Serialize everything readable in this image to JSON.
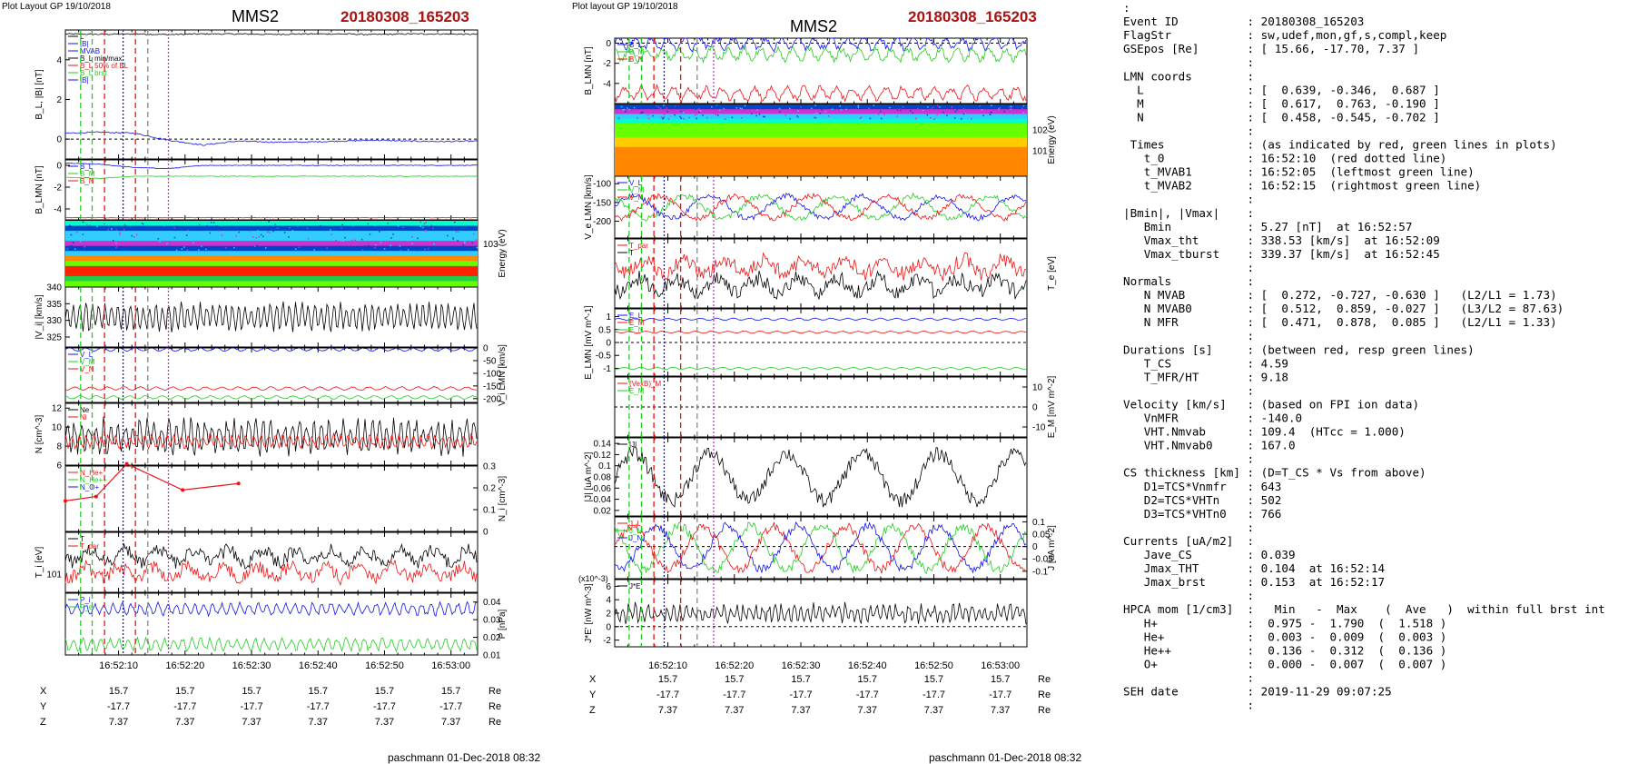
{
  "left": {
    "header": "Plot Layout GP 19/10/2018",
    "spacecraft": "MMS2",
    "event": "20180308_165203",
    "footer": "paschmann 01-Dec-2018 08:32",
    "time_ticks": [
      "16:52:10",
      "16:52:20",
      "16:52:30",
      "16:52:40",
      "16:52:50",
      "16:53:00"
    ],
    "pos_rows": [
      {
        "label": "X",
        "values": [
          "15.7",
          "15.7",
          "15.7",
          "15.7",
          "15.7",
          "15.7"
        ],
        "unit": "Re"
      },
      {
        "label": "Y",
        "values": [
          "-17.7",
          "-17.7",
          "-17.7",
          "-17.7",
          "-17.7",
          "-17.7"
        ],
        "unit": "Re"
      },
      {
        "label": "Z",
        "values": [
          "7.37",
          "7.37",
          "7.37",
          "7.37",
          "7.37",
          "7.37"
        ],
        "unit": "Re"
      }
    ]
  },
  "middle": {
    "header": "Plot layout GP 19/10/2018",
    "spacecraft": "MMS2",
    "event": "20180308_165203",
    "footer": "paschmann 01-Dec-2018 08:32",
    "time_ticks": [
      "16:52:10",
      "16:52:20",
      "16:52:30",
      "16:52:40",
      "16:52:50",
      "16:53:00"
    ],
    "pos_rows": [
      {
        "label": "X",
        "values": [
          "15.7",
          "15.7",
          "15.7",
          "15.7",
          "15.7",
          "15.7"
        ],
        "unit": "Re"
      },
      {
        "label": "Y",
        "values": [
          "-17.7",
          "-17.7",
          "-17.7",
          "-17.7",
          "-17.7",
          "-17.7"
        ],
        "unit": "Re"
      },
      {
        "label": "Z",
        "values": [
          "7.37",
          "7.37",
          "7.37",
          "7.37",
          "7.37",
          "7.37"
        ],
        "unit": "Re"
      }
    ]
  },
  "info_lines": [
    ":",
    "Event ID          : 20180308_165203",
    "FlagStr           : sw,udef,mon,gf,s,compl,keep",
    "GSEpos [Re]       : [ 15.66, -17.70, 7.37 ]",
    "                  :",
    "LMN coords        :",
    "  L               : [  0.639, -0.346,  0.687 ]",
    "  M               : [  0.617,  0.763, -0.190 ]",
    "  N               : [  0.458, -0.545, -0.702 ]",
    "                  :",
    " Times            : (as indicated by red, green lines in plots)",
    "   t_0            : 16:52:10  (red dotted line)",
    "   t_MVAB1        : 16:52:05  (leftmost green line)",
    "   t_MVAB2        : 16:52:15  (rightmost green line)",
    "                  :",
    "|Bmin|, |Vmax|    :",
    "   Bmin           : 5.27 [nT]  at 16:52:57",
    "   Vmax_tht       : 338.53 [km/s]  at 16:52:09",
    "   Vmax_tburst    : 339.37 [km/s]  at 16:52:45",
    "                  :",
    "Normals           :",
    "   N MVAB         : [  0.272, -0.727, -0.630 ]   (L2/L1 = 1.73)",
    "   N MVAB0        : [  0.512,  0.859, -0.027 ]   (L3/L2 = 87.63)",
    "   N MFR          : [  0.471,  0.878,  0.085 ]   (L2/L1 = 1.33)",
    "                  :",
    "Durations [s]     : (between red, resp green lines)",
    "   T_CS           : 4.59",
    "   T_MFR/HT       : 9.18",
    "                  :",
    "Velocity [km/s]   : (based on FPI ion data)",
    "   VnMFR          : -140.0",
    "   VHT.Nmvab      : 109.4  (HTcc = 1.000)",
    "   VHT.Nmvab0     : 167.0",
    "                  :",
    "CS thickness [km] : (D=T_CS * Vs from above)",
    "   D1=TCS*Vnmfr   : 643",
    "   D2=TCS*VHTn    : 502",
    "   D3=TCS*VHTn0   : 766",
    "                  :",
    "Currents [uA/m2]  :",
    "   Jave_CS        : 0.039",
    "   Jmax_THT       : 0.104  at 16:52:14",
    "   Jmax_brst      : 0.153  at 16:52:17",
    "                  :",
    "HPCA mom [1/cm3]  :   Min   -  Max    (  Ave   )  within full brst int",
    "   H+             :  0.975 -  1.790  (  1.518 )",
    "   He+            :  0.003 -  0.009  (  0.003 )",
    "   He++           :  0.136 -  0.312  (  0.136 )",
    "   O+             :  0.000 -  0.007  (  0.007 )",
    "                  :",
    "SEH date          : 2019-11-29 09:07:25",
    "                  :"
  ],
  "colors": {
    "blue": "#1010ee",
    "green": "#22cc22",
    "red": "#ee1111",
    "black": "#000000",
    "magenta": "#cc33cc",
    "title_red": "#aa1111"
  },
  "chart_data": [
    {
      "type": "line",
      "title": "MMS2",
      "panels": [
        {
          "id": "L1",
          "ylabel": "B_L, |B| [nT]",
          "ylim": [
            -1,
            5.5
          ],
          "yticks": [
            0,
            2,
            4
          ],
          "legend": [
            "L",
            "|B|",
            "MVAB",
            "B_L min/max",
            "B_L 50% of BL",
            "B_L brst",
            "|B|"
          ],
          "series": [
            {
              "name": "|B|",
              "color": "black",
              "values": [
                5.3,
                5.28,
                5.3,
                5.27,
                5.3,
                5.3,
                5.28,
                5.3,
                5.3,
                5.27,
                5.3,
                5.3,
                5.28
              ]
            },
            {
              "name": "B_L",
              "color": "blue",
              "values": [
                0.3,
                0.35,
                0.3,
                -0.05,
                -0.3,
                -0.1,
                -0.15,
                -0.15,
                -0.1,
                -0.05,
                -0.1,
                -0.12,
                -0.1
              ]
            }
          ]
        },
        {
          "id": "L2",
          "ylabel": "B_LMN [nT]",
          "ylim": [
            -5,
            0.5
          ],
          "yticks": [
            0,
            -2,
            -4
          ],
          "legend": [
            "B_L",
            "B_M",
            "B_N"
          ],
          "series": [
            {
              "name": "B_L",
              "color": "blue",
              "values": [
                0.2,
                0.1,
                -0.2,
                -0.3,
                0,
                0,
                0,
                0,
                0,
                0,
                0,
                0,
                0
              ]
            },
            {
              "name": "B_M",
              "color": "green",
              "values": [
                -1.1,
                -1.2,
                -1.0,
                -1.0,
                -1.0,
                -1.0,
                -1.0,
                -1.0,
                -1.0,
                -1.0,
                -1.0,
                -1.0,
                -1.0
              ]
            },
            {
              "name": "B_N",
              "color": "red",
              "values": [
                -4.8,
                -4.8,
                -4.8,
                -4.8,
                -4.8,
                -4.8,
                -4.8,
                -4.8,
                -4.8,
                -4.8,
                -4.8,
                -4.8,
                -4.8
              ]
            }
          ]
        },
        {
          "id": "L3",
          "type": "heatmap",
          "ylabel": "Energy (eV)",
          "yticks_label": [
            "10^3"
          ]
        },
        {
          "id": "L4",
          "ylabel": "|V_i| [km/s]",
          "ylim": [
            322,
            340
          ],
          "yticks": [
            325,
            330,
            335,
            340
          ],
          "series": [
            {
              "name": "|V_i|",
              "color": "black",
              "mean": 331,
              "amp": 5
            }
          ]
        },
        {
          "id": "L5",
          "ylabel": "V_i LMN [km/s]",
          "ylim": [
            -215,
            0
          ],
          "yticks": [
            0,
            -50,
            -100,
            -150,
            -200
          ],
          "legend": [
            "V_L",
            "V_M",
            "V_N"
          ],
          "series": [
            {
              "name": "V_L",
              "color": "blue",
              "mean": -6
            },
            {
              "name": "V_M",
              "color": "green",
              "mean": -195
            },
            {
              "name": "V_N",
              "color": "red",
              "mean": -160
            }
          ]
        },
        {
          "id": "L6",
          "ylabel": "N [cm^-3]",
          "ylim": [
            6,
            12.5
          ],
          "yticks": [
            6,
            8,
            10,
            12
          ],
          "legend": [
            "Ne",
            "Ni"
          ],
          "series": [
            {
              "name": "Ni",
              "color": "black",
              "mean": 9,
              "amp": 2
            },
            {
              "name": "Ne",
              "color": "red",
              "mean": 8.5
            }
          ]
        },
        {
          "id": "L7",
          "ylabel": "N_i [cm^-3]",
          "ylim": [
            0,
            0.3
          ],
          "yticks": [
            0,
            0.1,
            0.2,
            0.3
          ],
          "legend": [
            "N_He+",
            "N_He++",
            "N_O+"
          ],
          "series": [
            {
              "name": "N_He++",
              "color": "red",
              "x": [
                0,
                11,
                22,
                42,
                62
              ],
              "values": [
                0.14,
                0.16,
                0.31,
                0.19,
                0.22
              ]
            }
          ]
        },
        {
          "id": "L8",
          "ylabel": "T_i [eV]",
          "yticks_label": [
            "10^1"
          ],
          "legend": [
            "T",
            "T_par"
          ],
          "series": [
            {
              "name": "T",
              "color": "black"
            },
            {
              "name": "T_par",
              "color": "red"
            }
          ]
        },
        {
          "id": "L9",
          "ylabel": "P [nPa]",
          "ylim": [
            0.01,
            0.045
          ],
          "yticks": [
            0.01,
            0.02,
            0.03,
            0.04
          ],
          "legend": [
            "P_i",
            "P_e"
          ],
          "series": [
            {
              "name": "P_i",
              "color": "blue",
              "mean": 0.036
            },
            {
              "name": "P_e",
              "color": "green",
              "mean": 0.016
            }
          ]
        }
      ]
    },
    {
      "type": "line",
      "title": "MMS2",
      "panels": [
        {
          "id": "M1",
          "ylabel": "B_LMN [nT]",
          "ylim": [
            -6,
            0.5
          ],
          "yticks": [
            0,
            -2,
            -4
          ],
          "legend": [
            "B_L",
            "B_M",
            "B_N"
          ],
          "series": [
            {
              "name": "B_L",
              "color": "blue",
              "mean": 0
            },
            {
              "name": "B_M",
              "color": "green",
              "mean": -1.1
            },
            {
              "name": "B_N",
              "color": "red",
              "mean": -5
            }
          ]
        },
        {
          "id": "M2",
          "type": "heatmap",
          "ylabel": "Energy (eV)",
          "yticks_label": [
            "10^2",
            "10^1"
          ]
        },
        {
          "id": "M3",
          "ylabel": "V_e LMN [km/s]",
          "ylim": [
            -245,
            -80
          ],
          "yticks": [
            -100,
            -150,
            -200
          ],
          "legend": [
            "V_L",
            "V_M",
            "V_N"
          ],
          "series": [
            {
              "name": "V_L",
              "color": "blue"
            },
            {
              "name": "V_M",
              "color": "green"
            },
            {
              "name": "V_N",
              "color": "red"
            }
          ]
        },
        {
          "id": "M4",
          "ylabel": "T_e [eV]",
          "legend": [
            "T_par",
            "T"
          ],
          "series": [
            {
              "name": "T_par",
              "color": "red"
            },
            {
              "name": "T",
              "color": "black"
            }
          ]
        },
        {
          "id": "M5",
          "ylabel": "E_LMN [mV m^-1]",
          "ylim": [
            -1.3,
            1.3
          ],
          "yticks": [
            1.0,
            0.5,
            0.0,
            -0.5,
            -1.0
          ],
          "legend": [
            "E_L",
            "E_M",
            "E_N"
          ],
          "series": [
            {
              "name": "E_L",
              "color": "blue",
              "mean": 0.9
            },
            {
              "name": "E_M",
              "color": "red",
              "mean": 0.4
            },
            {
              "name": "E_N",
              "color": "green",
              "mean": -1.0
            }
          ]
        },
        {
          "id": "M6",
          "ylabel": "E_M [mV m^-2]",
          "ylim": [
            -15,
            15
          ],
          "yticks": [
            10,
            0,
            -10
          ],
          "legend": [
            "(VexB)_M",
            "E_M"
          ]
        },
        {
          "id": "M7",
          "ylabel": "|J| [uA m^-2]",
          "ylim": [
            0.01,
            0.15
          ],
          "yticks": [
            0.02,
            0.04,
            0.06,
            0.08,
            0.1,
            0.12,
            0.14
          ],
          "legend": [
            "|J|"
          ],
          "series": [
            {
              "name": "|J|",
              "color": "black"
            }
          ]
        },
        {
          "id": "M8",
          "ylabel": "J [uA m^-2]",
          "ylim": [
            -0.13,
            0.12
          ],
          "yticks": [
            0.1,
            0.05,
            0.0,
            -0.05,
            -0.1
          ],
          "legend": [
            "J_L",
            "J_M",
            "J_N"
          ],
          "series": [
            {
              "name": "J_L",
              "color": "red"
            },
            {
              "name": "J_M",
              "color": "green"
            },
            {
              "name": "J_N",
              "color": "blue"
            }
          ]
        },
        {
          "id": "M9",
          "ylabel": "J*E' [nW m^-3]",
          "ylim": [
            -3,
            7
          ],
          "yticks": [
            6,
            4,
            2,
            0,
            -2
          ],
          "scale_label": "(x10^-3)",
          "legend": [
            "J*E'"
          ],
          "series": [
            {
              "name": "J*E'",
              "color": "black"
            }
          ]
        }
      ]
    }
  ]
}
